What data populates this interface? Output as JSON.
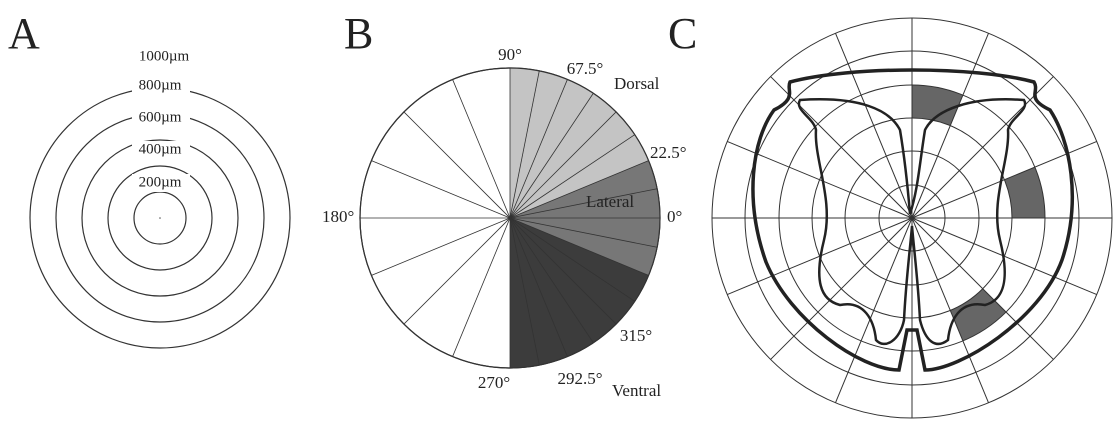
{
  "panel_a": {
    "label": "A",
    "rings": [
      "200µm",
      "400µm",
      "600µm",
      "800µm",
      "1000µm"
    ]
  },
  "panel_b": {
    "label": "B",
    "angles": [
      "90°",
      "67.5°",
      "22.5°",
      "0°",
      "315°",
      "292.5°",
      "270°",
      "180°"
    ],
    "regions": [
      "Dorsal",
      "Lateral",
      "Ventral"
    ]
  },
  "panel_c": {
    "label": "C"
  }
}
